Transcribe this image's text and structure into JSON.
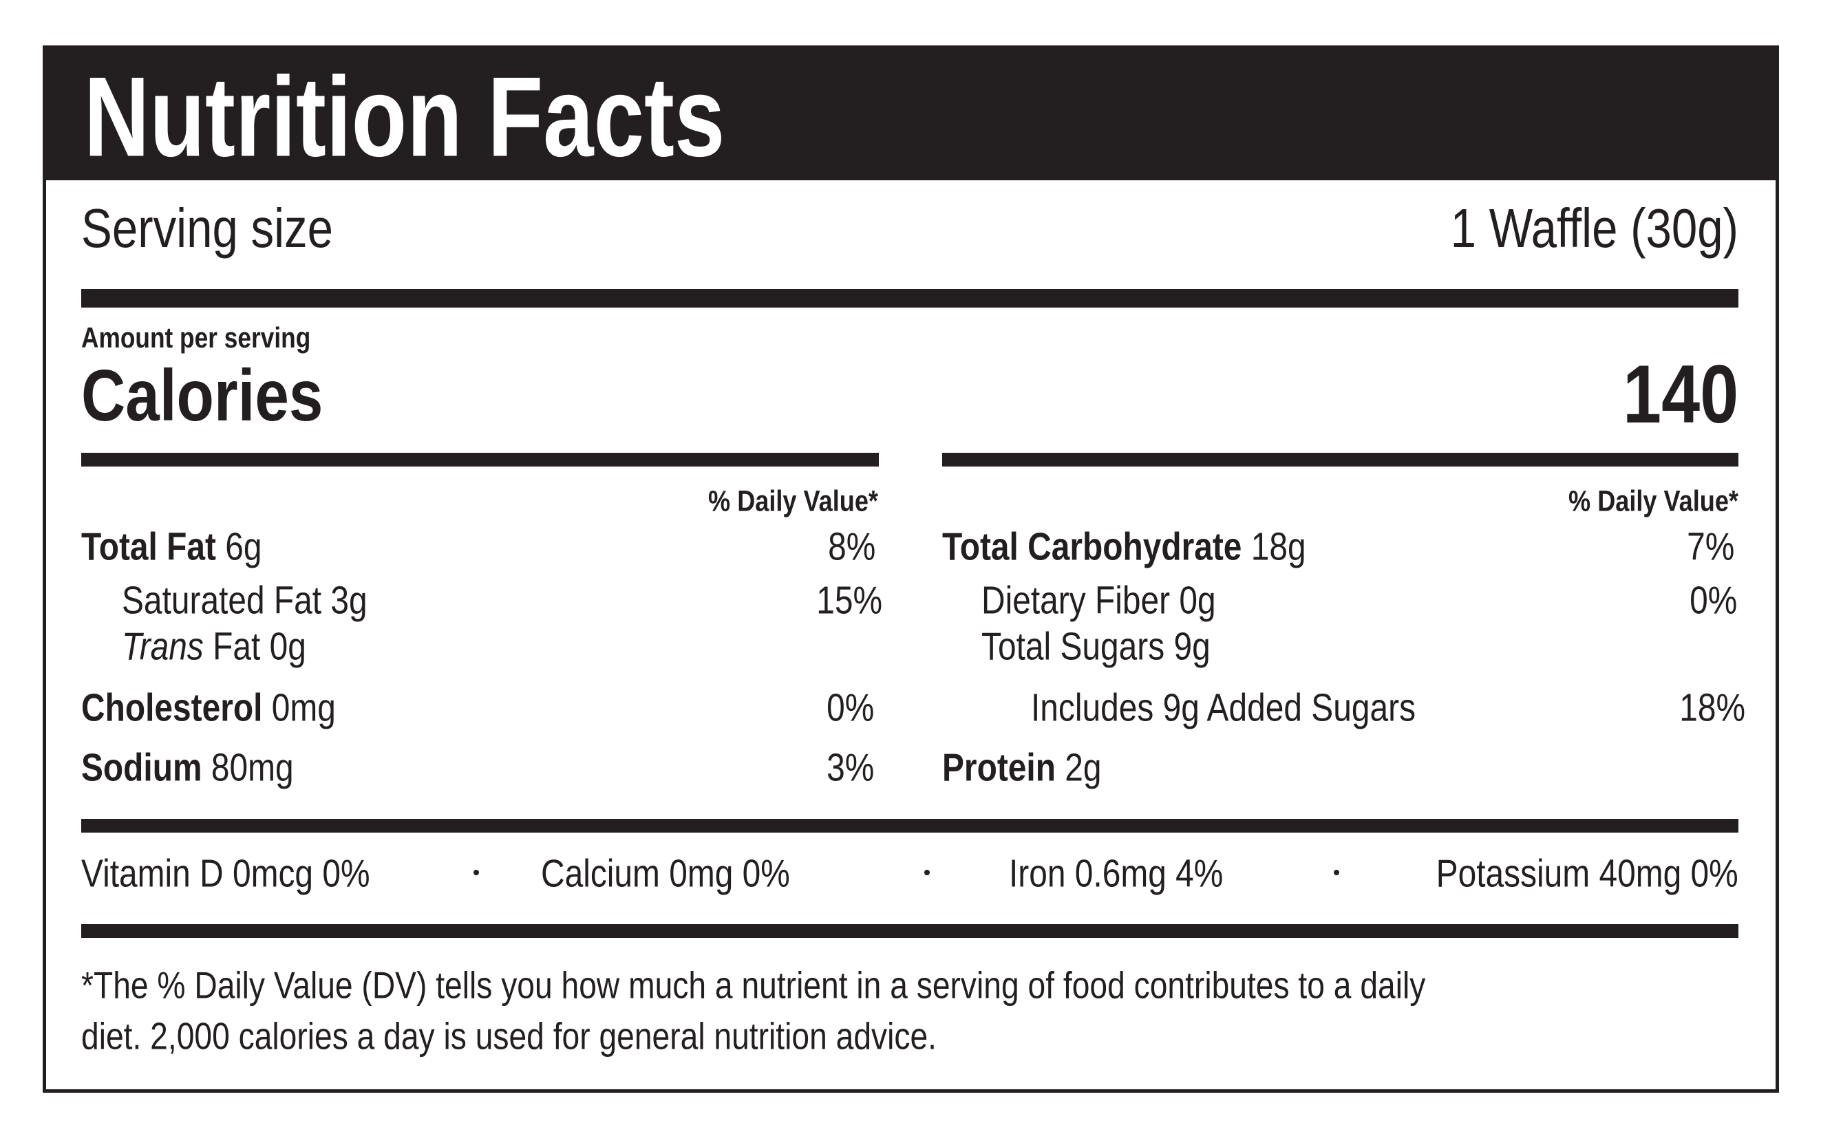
{
  "header": {
    "title": "Nutrition Facts"
  },
  "serving": {
    "label": "Serving size",
    "value": "1 Waffle (30g)"
  },
  "calories": {
    "amount_per_serving": "Amount per serving",
    "label": "Calories",
    "value": "140"
  },
  "left": {
    "dv_header": "% Daily Value*",
    "rows": [
      {
        "name": "Total Fat",
        "amount": "6g",
        "dv": "8%"
      },
      {
        "name": "Saturated Fat",
        "amount": "3g",
        "dv": "15%"
      },
      {
        "name_italic": "Trans",
        "name": "Fat",
        "amount": "0g"
      },
      {
        "name": "Cholesterol",
        "amount": "0mg",
        "dv": "0%"
      },
      {
        "name": "Sodium",
        "amount": "80mg",
        "dv": "3%"
      }
    ]
  },
  "right": {
    "dv_header": "% Daily Value*",
    "rows": [
      {
        "name": "Total Carbohydrate",
        "amount": "18g",
        "dv": "7%"
      },
      {
        "name": "Dietary Fiber",
        "amount": "0g",
        "dv": "0%"
      },
      {
        "name": "Total Sugars",
        "amount": "9g"
      },
      {
        "name": "Includes 9g Added Sugars",
        "dv": "18%"
      },
      {
        "name": "Protein",
        "amount": "2g"
      }
    ]
  },
  "vitamins": [
    "Vitamin D 0mcg 0%",
    "Calcium 0mg 0%",
    "Iron 0.6mg 4%",
    "Potassium 40mg 0%"
  ],
  "footnote": [
    "*The % Daily Value (DV) tells you how much a nutrient in a serving of food contributes to a daily",
    "diet. 2,000 calories a day is used for general nutrition advice."
  ]
}
